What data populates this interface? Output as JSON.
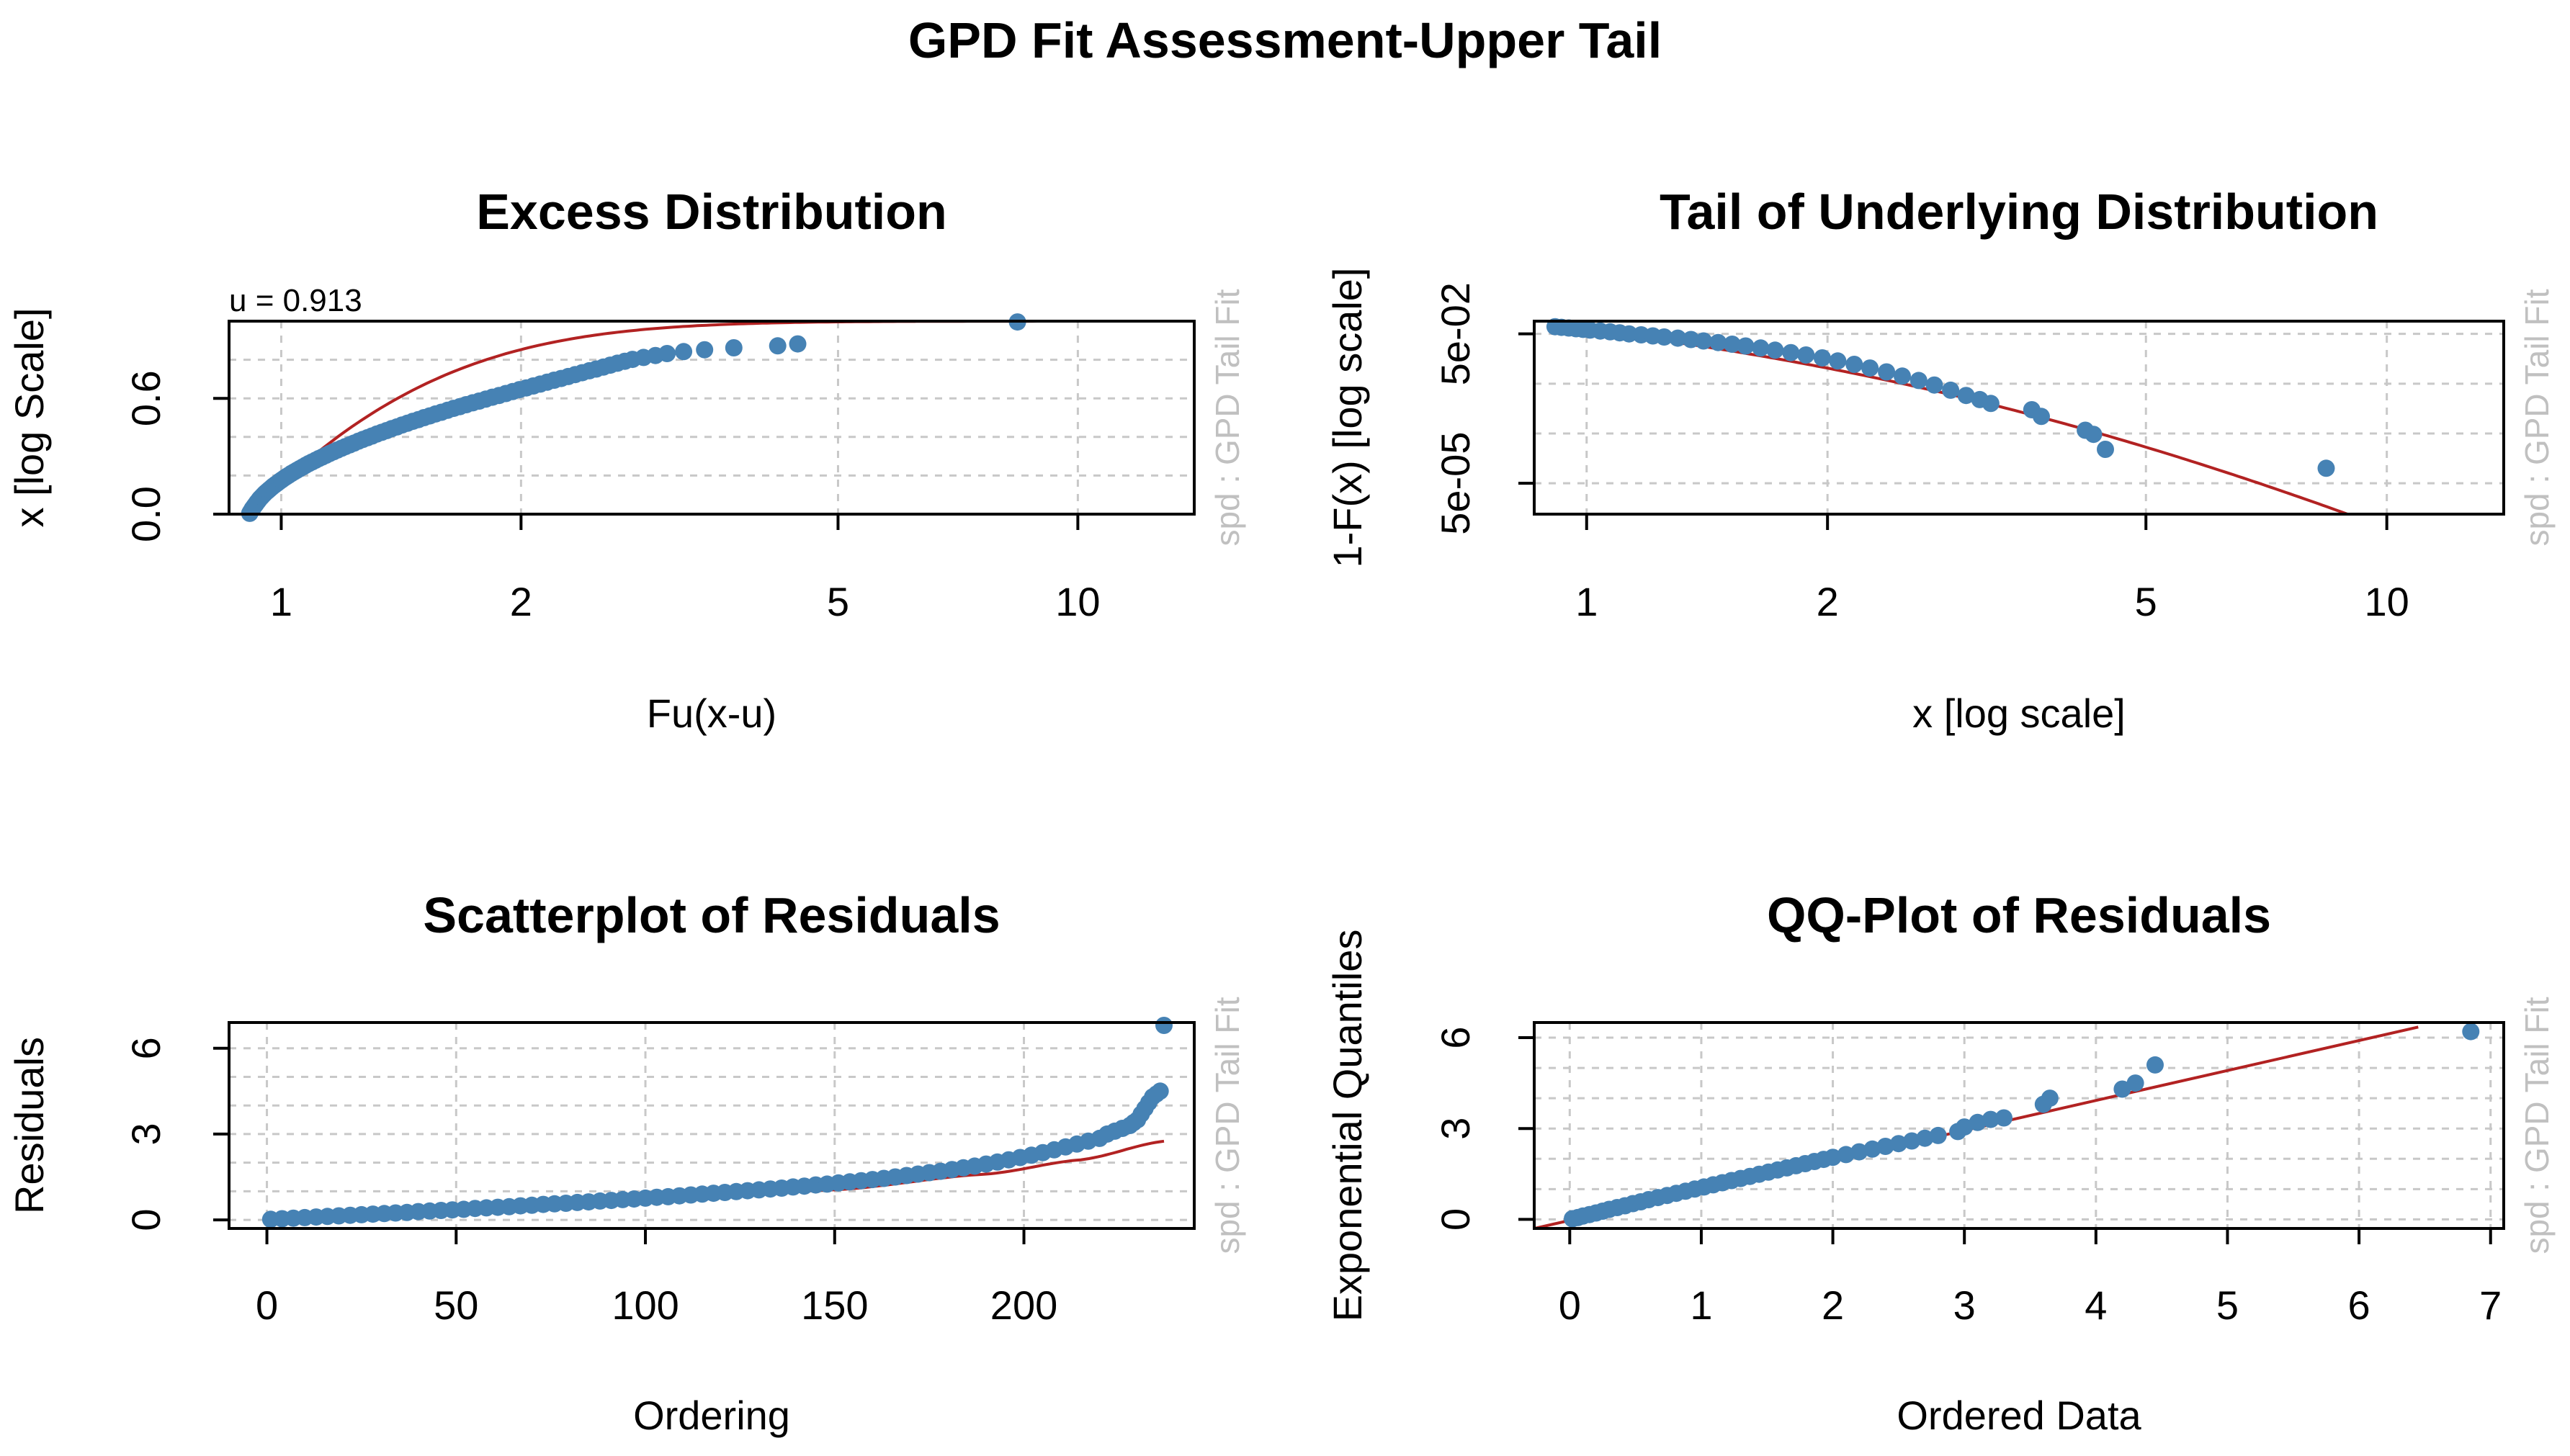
{
  "main_title": "GPD Fit Assessment-Upper Tail",
  "side_label": "spd : GPD Tail Fit",
  "colors": {
    "points": "#4682b4",
    "fit_line": "#b22222",
    "grid": "#c8c8c8"
  },
  "chart_data": [
    {
      "id": "excess",
      "type": "scatter",
      "title": "Excess Distribution",
      "xlabel": "Fu(x-u)",
      "ylabel": "x [log Scale]",
      "annotation": "u = 0.913",
      "x_scale": "log",
      "xlim": [
        0.86,
        14
      ],
      "ylim": [
        0,
        1
      ],
      "x_ticks": [
        1,
        2,
        5,
        10
      ],
      "x_tick_labels": [
        "1",
        "2",
        "5",
        "10"
      ],
      "x_grid": [
        1,
        2,
        5,
        10
      ],
      "y_ticks": [
        0.0,
        0.6
      ],
      "y_tick_labels": [
        "0.0",
        "0.6"
      ],
      "y_grid": [
        0,
        0.2,
        0.4,
        0.6,
        0.8,
        1.0
      ],
      "grid": true,
      "fit_line": {
        "kind": "gpd_cdf",
        "u": 0.913,
        "sigma": 0.5,
        "xi": 0.13,
        "x_from": 0.913,
        "x_to": 13.5
      },
      "ref_line": {
        "y": 1.0
      },
      "x": [
        0.913,
        0.915,
        0.918,
        0.92,
        0.923,
        0.926,
        0.929,
        0.932,
        0.935,
        0.938,
        0.941,
        0.945,
        0.949,
        0.953,
        0.957,
        0.962,
        0.967,
        0.972,
        0.977,
        0.983,
        0.989,
        0.995,
        1.001,
        1.008,
        1.015,
        1.022,
        1.03,
        1.038,
        1.046,
        1.055,
        1.064,
        1.073,
        1.083,
        1.093,
        1.104,
        1.115,
        1.126,
        1.138,
        1.15,
        1.163,
        1.176,
        1.19,
        1.204,
        1.219,
        1.234,
        1.25,
        1.266,
        1.283,
        1.3,
        1.318,
        1.337,
        1.356,
        1.376,
        1.397,
        1.418,
        1.44,
        1.463,
        1.487,
        1.511,
        1.536,
        1.562,
        1.589,
        1.617,
        1.646,
        1.676,
        1.707,
        1.739,
        1.772,
        1.806,
        1.841,
        1.877,
        1.914,
        1.952,
        1.991,
        2.031,
        2.072,
        2.114,
        2.157,
        2.201,
        2.246,
        2.292,
        2.339,
        2.387,
        2.436,
        2.486,
        2.537,
        2.589,
        2.642,
        2.7,
        2.76,
        2.85,
        2.95,
        3.05,
        3.2,
        3.4,
        3.7,
        4.2,
        4.45,
        8.4
      ],
      "y": [
        0.004,
        0.012,
        0.02,
        0.028,
        0.036,
        0.044,
        0.052,
        0.06,
        0.067,
        0.075,
        0.082,
        0.09,
        0.098,
        0.106,
        0.113,
        0.121,
        0.129,
        0.137,
        0.145,
        0.153,
        0.161,
        0.169,
        0.177,
        0.186,
        0.194,
        0.202,
        0.211,
        0.219,
        0.227,
        0.236,
        0.244,
        0.253,
        0.262,
        0.27,
        0.279,
        0.288,
        0.296,
        0.305,
        0.314,
        0.323,
        0.332,
        0.341,
        0.35,
        0.359,
        0.368,
        0.378,
        0.387,
        0.396,
        0.405,
        0.415,
        0.424,
        0.433,
        0.443,
        0.452,
        0.462,
        0.471,
        0.481,
        0.49,
        0.5,
        0.509,
        0.519,
        0.528,
        0.538,
        0.548,
        0.557,
        0.567,
        0.577,
        0.586,
        0.596,
        0.606,
        0.615,
        0.625,
        0.635,
        0.645,
        0.654,
        0.664,
        0.674,
        0.684,
        0.694,
        0.703,
        0.713,
        0.723,
        0.733,
        0.743,
        0.752,
        0.762,
        0.772,
        0.782,
        0.792,
        0.802,
        0.812,
        0.822,
        0.832,
        0.842,
        0.852,
        0.862,
        0.872,
        0.882,
        0.996
      ]
    },
    {
      "id": "tail",
      "type": "scatter",
      "title": "Tail of Underlying Distribution",
      "xlabel": "x [log scale]",
      "ylabel": "1-F(x) [log scale]",
      "x_scale": "log",
      "y_scale": "log",
      "xlim": [
        0.86,
        14
      ],
      "ylim": [
        1.2e-05,
        0.09
      ],
      "x_ticks": [
        1,
        2,
        5,
        10
      ],
      "x_tick_labels": [
        "1",
        "2",
        "5",
        "10"
      ],
      "x_grid": [
        1,
        2,
        5,
        10
      ],
      "y_ticks": [
        0.05,
        5e-05
      ],
      "y_tick_labels": [
        "5e-02",
        "5e-05"
      ],
      "y_grid": [
        0.05,
        0.005,
        0.0005,
        5e-05
      ],
      "grid": true,
      "fit_line": {
        "kind": "gpd_tail",
        "u": 0.913,
        "pu": 0.0696,
        "sigma": 0.5,
        "xi": 0.13,
        "x_from": 0.913,
        "x_to": 13.5
      },
      "x": [
        0.913,
        0.93,
        0.95,
        0.97,
        0.99,
        1.01,
        1.04,
        1.07,
        1.1,
        1.13,
        1.17,
        1.21,
        1.25,
        1.3,
        1.35,
        1.4,
        1.46,
        1.52,
        1.58,
        1.65,
        1.72,
        1.8,
        1.88,
        1.97,
        2.06,
        2.16,
        2.26,
        2.37,
        2.48,
        2.6,
        2.72,
        2.85,
        2.98,
        3.1,
        3.2,
        3.6,
        3.7,
        4.2,
        4.3,
        4.45,
        8.4
      ],
      "y": [
        0.0696,
        0.0675,
        0.0655,
        0.0635,
        0.0615,
        0.0595,
        0.057,
        0.055,
        0.0525,
        0.05,
        0.0478,
        0.0455,
        0.0432,
        0.041,
        0.0385,
        0.036,
        0.0335,
        0.031,
        0.0285,
        0.026,
        0.0235,
        0.021,
        0.0188,
        0.0165,
        0.0143,
        0.0122,
        0.0103,
        0.0086,
        0.0071,
        0.0058,
        0.0047,
        0.0037,
        0.0029,
        0.0024,
        0.002,
        0.0015,
        0.0011,
        0.00058,
        0.00048,
        0.00024,
        0.0001
      ]
    },
    {
      "id": "scatter",
      "type": "scatter",
      "title": "Scatterplot of Residuals",
      "xlabel": "Ordering",
      "ylabel": "Residuals",
      "xlim": [
        -10,
        245
      ],
      "ylim": [
        -0.3,
        6.9
      ],
      "x_ticks": [
        0,
        50,
        100,
        150,
        200
      ],
      "x_tick_labels": [
        "0",
        "50",
        "100",
        "150",
        "200"
      ],
      "x_grid": [
        0,
        50,
        100,
        150,
        200
      ],
      "y_ticks": [
        0,
        3,
        6
      ],
      "y_tick_labels": [
        "0",
        "3",
        "6"
      ],
      "y_grid": [
        0,
        1,
        2,
        3,
        4,
        5,
        6
      ],
      "grid": true,
      "fit_line": {
        "kind": "smooth",
        "x": [
          0,
          50,
          100,
          150,
          190,
          215,
          237
        ],
        "y": [
          0.05,
          0.3,
          0.65,
          1.05,
          1.6,
          2.1,
          2.75
        ]
      },
      "x": [
        1,
        4,
        7,
        10,
        13,
        16,
        19,
        22,
        25,
        28,
        31,
        34,
        37,
        40,
        43,
        46,
        49,
        52,
        55,
        58,
        61,
        64,
        67,
        70,
        73,
        76,
        79,
        82,
        85,
        88,
        91,
        94,
        97,
        100,
        103,
        106,
        109,
        112,
        115,
        118,
        121,
        124,
        127,
        130,
        133,
        136,
        139,
        142,
        145,
        148,
        151,
        154,
        157,
        160,
        163,
        166,
        169,
        172,
        175,
        178,
        181,
        184,
        187,
        190,
        193,
        196,
        199,
        202,
        205,
        208,
        211,
        214,
        217,
        220,
        222,
        224,
        226,
        228,
        229,
        230,
        231,
        232,
        233,
        234,
        235,
        236,
        237
      ],
      "y": [
        0.02,
        0.04,
        0.06,
        0.08,
        0.1,
        0.12,
        0.14,
        0.16,
        0.18,
        0.2,
        0.22,
        0.24,
        0.26,
        0.29,
        0.31,
        0.33,
        0.35,
        0.37,
        0.4,
        0.42,
        0.44,
        0.46,
        0.49,
        0.51,
        0.54,
        0.56,
        0.58,
        0.61,
        0.63,
        0.66,
        0.68,
        0.71,
        0.73,
        0.76,
        0.79,
        0.81,
        0.84,
        0.87,
        0.9,
        0.93,
        0.96,
        0.99,
        1.02,
        1.05,
        1.08,
        1.11,
        1.15,
        1.18,
        1.22,
        1.25,
        1.29,
        1.33,
        1.37,
        1.41,
        1.45,
        1.5,
        1.55,
        1.6,
        1.65,
        1.7,
        1.76,
        1.82,
        1.88,
        1.95,
        2.02,
        2.1,
        2.18,
        2.26,
        2.35,
        2.45,
        2.55,
        2.65,
        2.75,
        2.85,
        3.0,
        3.1,
        3.2,
        3.3,
        3.4,
        3.5,
        3.7,
        3.9,
        4.1,
        4.3,
        4.4,
        4.5,
        6.8
      ]
    },
    {
      "id": "qq",
      "type": "scatter",
      "title": "QQ-Plot of Residuals",
      "xlabel": "Ordered Data",
      "ylabel": "Exponential Quantiles",
      "xlim": [
        -0.27,
        7.1
      ],
      "ylim": [
        -0.3,
        6.5
      ],
      "x_ticks": [
        0,
        1,
        2,
        3,
        4,
        5,
        6,
        7
      ],
      "x_tick_labels": [
        "0",
        "1",
        "2",
        "3",
        "4",
        "5",
        "6",
        "7"
      ],
      "x_grid": [
        0,
        1,
        2,
        3,
        4,
        5,
        6,
        7
      ],
      "y_ticks": [
        0,
        3,
        6
      ],
      "y_tick_labels": [
        "0",
        "3",
        "6"
      ],
      "y_grid": [
        0,
        1,
        2,
        3,
        4,
        5,
        6
      ],
      "grid": true,
      "fit_line": {
        "kind": "line",
        "x": [
          -0.27,
          6.45
        ],
        "y": [
          -0.3,
          6.35
        ]
      },
      "x": [
        0.02,
        0.06,
        0.1,
        0.15,
        0.2,
        0.25,
        0.3,
        0.36,
        0.42,
        0.48,
        0.54,
        0.6,
        0.67,
        0.74,
        0.81,
        0.88,
        0.95,
        1.02,
        1.09,
        1.16,
        1.23,
        1.3,
        1.37,
        1.44,
        1.51,
        1.58,
        1.65,
        1.72,
        1.79,
        1.86,
        1.93,
        2.0,
        2.1,
        2.2,
        2.3,
        2.4,
        2.5,
        2.6,
        2.7,
        2.8,
        2.95,
        3.0,
        3.1,
        3.2,
        3.3,
        3.6,
        3.65,
        4.2,
        4.3,
        4.45,
        6.85
      ],
      "y": [
        0.02,
        0.06,
        0.11,
        0.16,
        0.21,
        0.27,
        0.33,
        0.39,
        0.45,
        0.52,
        0.58,
        0.65,
        0.72,
        0.79,
        0.86,
        0.93,
        1.0,
        1.07,
        1.14,
        1.21,
        1.28,
        1.35,
        1.42,
        1.49,
        1.56,
        1.63,
        1.7,
        1.77,
        1.84,
        1.91,
        1.98,
        2.05,
        2.14,
        2.23,
        2.32,
        2.41,
        2.5,
        2.59,
        2.68,
        2.77,
        2.9,
        3.05,
        3.2,
        3.3,
        3.35,
        3.8,
        4.0,
        4.3,
        4.5,
        5.1,
        6.2
      ]
    }
  ]
}
